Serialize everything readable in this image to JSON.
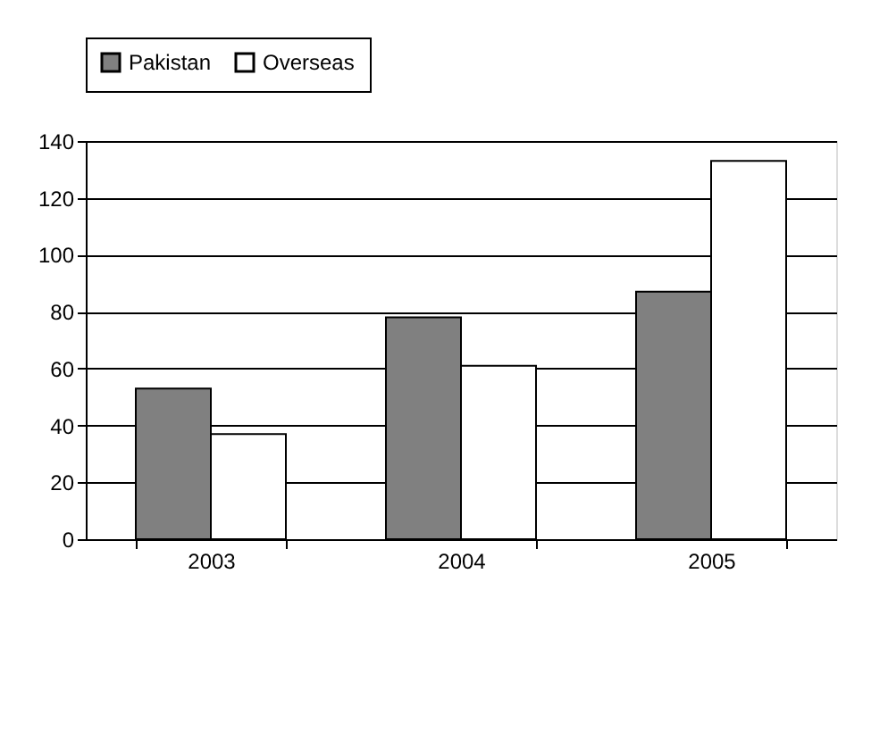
{
  "chart_data": {
    "type": "bar",
    "categories": [
      "2003",
      "2004",
      "2005"
    ],
    "series": [
      {
        "name": "Pakistan",
        "color": "#808080",
        "values": [
          53,
          78,
          87
        ]
      },
      {
        "name": "Overseas",
        "color": "#ffffff",
        "values": [
          37,
          61,
          133
        ]
      }
    ],
    "ylim": [
      0,
      140
    ],
    "yticks": [
      0,
      20,
      40,
      60,
      80,
      100,
      120,
      140
    ],
    "grid": "y",
    "legend": "top"
  }
}
